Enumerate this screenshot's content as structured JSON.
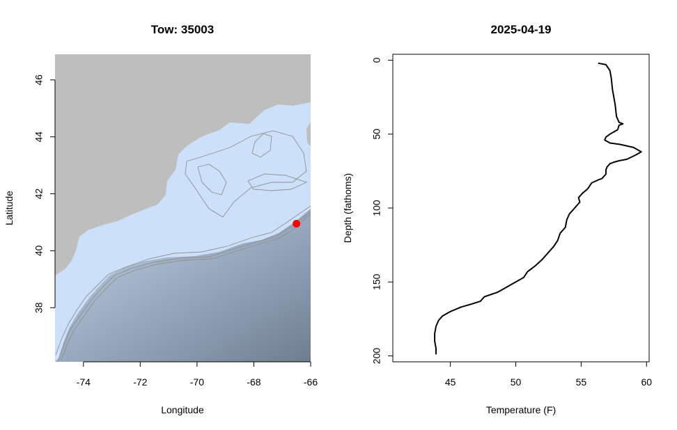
{
  "chart_data": [
    {
      "type": "map",
      "title": "Tow: 35003",
      "xlabel": "Longitude",
      "ylabel": "Latitude",
      "xlim": [
        -75,
        -66
      ],
      "ylim": [
        36.1,
        46.9
      ],
      "x_ticks": [
        -74,
        -72,
        -70,
        -68,
        -66
      ],
      "y_ticks": [
        38,
        40,
        42,
        44,
        46
      ],
      "marker": {
        "lon": -66.5,
        "lat": 40.95,
        "color": "#ff0000"
      },
      "colors": {
        "land": "#bebebe",
        "shelf": "#cce0fa",
        "deep": "#7c8a9c",
        "contour": "#8f8f8f"
      }
    },
    {
      "type": "line",
      "title": "2025-04-19",
      "xlabel": "Temperature (F)",
      "ylabel": "Depth (fathoms)",
      "xlim": [
        40.6,
        60.2
      ],
      "ylim": [
        204,
        -4
      ],
      "y_reversed": true,
      "x_ticks": [
        45,
        50,
        55,
        60
      ],
      "y_ticks": [
        0,
        50,
        100,
        150,
        200
      ],
      "series": [
        {
          "color": "#000000",
          "points": [
            [
              56.3,
              2
            ],
            [
              56.9,
              3
            ],
            [
              57.2,
              7
            ],
            [
              57.3,
              12
            ],
            [
              57.4,
              20
            ],
            [
              57.6,
              30
            ],
            [
              57.7,
              38
            ],
            [
              57.9,
              42
            ],
            [
              58.2,
              43
            ],
            [
              57.9,
              44
            ],
            [
              57.8,
              47
            ],
            [
              57.6,
              48
            ],
            [
              57.2,
              50
            ],
            [
              56.9,
              52
            ],
            [
              56.8,
              54
            ],
            [
              57.2,
              56
            ],
            [
              58.0,
              57
            ],
            [
              59.0,
              59
            ],
            [
              59.6,
              62
            ],
            [
              59.2,
              64
            ],
            [
              58.5,
              67
            ],
            [
              57.9,
              68
            ],
            [
              57.5,
              69
            ],
            [
              57.2,
              70
            ],
            [
              57.0,
              72
            ],
            [
              56.9,
              74
            ],
            [
              56.9,
              77
            ],
            [
              56.6,
              80
            ],
            [
              56.3,
              81
            ],
            [
              55.8,
              83
            ],
            [
              55.5,
              87
            ],
            [
              55.1,
              90
            ],
            [
              54.8,
              93
            ],
            [
              54.9,
              96
            ],
            [
              54.6,
              99
            ],
            [
              54.3,
              102
            ],
            [
              54.1,
              104
            ],
            [
              53.9,
              108
            ],
            [
              53.8,
              113
            ],
            [
              53.4,
              117
            ],
            [
              53.2,
              122
            ],
            [
              52.9,
              126
            ],
            [
              52.5,
              130
            ],
            [
              52.0,
              135
            ],
            [
              51.5,
              139
            ],
            [
              50.9,
              143
            ],
            [
              50.6,
              147
            ],
            [
              49.8,
              151
            ],
            [
              49.2,
              154
            ],
            [
              48.6,
              157
            ],
            [
              47.6,
              160
            ],
            [
              47.3,
              163
            ],
            [
              46.6,
              165
            ],
            [
              45.8,
              167
            ],
            [
              45.0,
              170
            ],
            [
              44.4,
              173
            ],
            [
              44.1,
              176
            ],
            [
              43.9,
              180
            ],
            [
              43.8,
              185
            ],
            [
              43.8,
              190
            ],
            [
              43.9,
              195
            ],
            [
              43.9,
              199
            ]
          ]
        }
      ]
    }
  ]
}
